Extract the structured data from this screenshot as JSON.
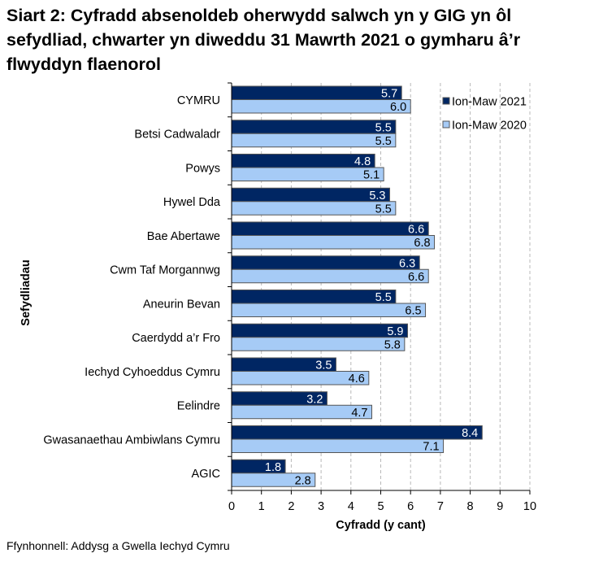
{
  "title": "Siart 2: Cyfradd absenoldeb oherwydd salwch yn y GIG yn ôl sefydliad, chwarter yn diweddu 31 Mawrth 2021 o gymharu â’r flwyddyn flaenorol",
  "source": "Ffynhonnell: Addysg a Gwella Iechyd Cymru",
  "chart_data": {
    "type": "bar",
    "orientation": "horizontal",
    "title": "Siart 2: Cyfradd absenoldeb oherwydd salwch yn y GIG yn ôl sefydliad, chwarter yn diweddu 31 Mawrth 2021 o gymharu â’r flwyddyn flaenorol",
    "xlabel": "Cyfradd (y cant)",
    "ylabel": "Sefydliadau",
    "xlim": [
      0,
      10
    ],
    "xticks": [
      "0",
      "1",
      "2",
      "3",
      "4",
      "5",
      "6",
      "7",
      "8",
      "9",
      "10"
    ],
    "grid": "vertical dashed",
    "legend": "top-right",
    "categories": [
      "CYMRU",
      "Betsi Cadwaladr",
      "Powys",
      "Hywel Dda",
      "Bae Abertawe",
      "Cwm Taf Morgannwg",
      "Aneurin Bevan",
      "Caerdydd a’r Fro",
      "Iechyd Cyhoeddus Cymru",
      "Eelindre",
      "Gwasanaethau Ambiwlans Cymru",
      "AGIC"
    ],
    "series": [
      {
        "name": "Ion-Maw 2021",
        "color": "#002663",
        "values": [
          5.7,
          5.5,
          4.8,
          5.3,
          6.6,
          6.3,
          5.5,
          5.9,
          3.5,
          3.2,
          8.4,
          1.8
        ],
        "labels": [
          "5.7",
          "5.5",
          "4.8",
          "5.3",
          "6.6",
          "6.3",
          "5.5",
          "5.9",
          "3.5",
          "3.2",
          "8.4",
          "1.8"
        ]
      },
      {
        "name": "Ion-Maw 2020",
        "color": "#a6cbf6",
        "values": [
          6.0,
          5.5,
          5.1,
          5.5,
          6.8,
          6.6,
          6.5,
          5.8,
          4.6,
          4.7,
          7.1,
          2.8
        ],
        "labels": [
          "6.0",
          "5.5",
          "5.1",
          "5.5",
          "6.8",
          "6.6",
          "6.5",
          "5.8",
          "4.6",
          "4.7",
          "7.1",
          "2.8"
        ]
      }
    ]
  }
}
